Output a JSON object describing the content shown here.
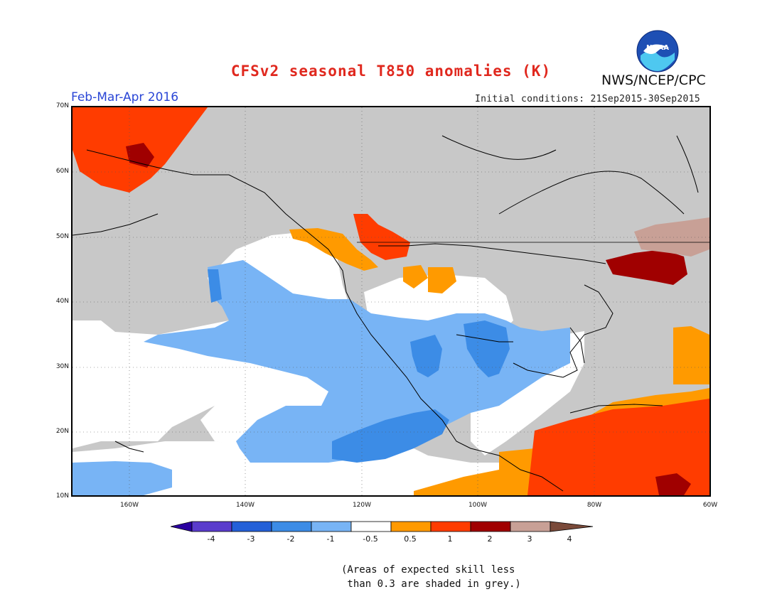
{
  "title": "CFSv2 seasonal T850 anomalies (K)",
  "organization": "NWS/NCEP/CPC",
  "logo_text": "NOAA",
  "season": "Feb-Mar-Apr 2016",
  "initial_conditions": "Initial conditions: 21Sep2015-30Sep2015",
  "map": {
    "lat_labels": [
      "70N",
      "60N",
      "50N",
      "40N",
      "30N",
      "20N",
      "10N"
    ],
    "lon_labels": [
      "160W",
      "140W",
      "120W",
      "100W",
      "80W",
      "60W"
    ],
    "colors": {
      "grey": "#c8c8c8",
      "white": "#ffffff",
      "light_blue": "#78b4f5",
      "mid_blue": "#3c8ce6",
      "orange": "#ff9a00",
      "red_orange": "#ff3c00",
      "dark_red": "#a00000",
      "pink_tan": "#c8a096",
      "brown": "#7a4a3a"
    }
  },
  "colorbar": {
    "ticks": [
      "-4",
      "-3",
      "-2",
      "-1",
      "-0.5",
      "0.5",
      "1",
      "2",
      "3",
      "4"
    ],
    "colors": [
      "#2a00a0",
      "#5a3ccc",
      "#2460d8",
      "#3c8ce6",
      "#78b4f5",
      "#ffffff",
      "#ff9a00",
      "#ff3c00",
      "#a00000",
      "#c8a096",
      "#7a4a3a"
    ]
  },
  "note": "(Areas of expected skill less\n than 0.3 are shaded in grey.)"
}
